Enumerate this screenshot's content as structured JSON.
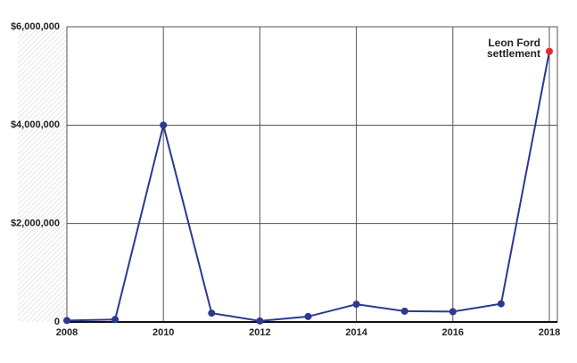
{
  "chart_data": {
    "type": "line",
    "x": [
      2008,
      2009,
      2010,
      2011,
      2012,
      2013,
      2014,
      2015,
      2016,
      2017,
      2018
    ],
    "series": [
      {
        "color": "#2b3990",
        "values": [
          30000,
          50000,
          4000000,
          180000,
          20000,
          110000,
          360000,
          220000,
          210000,
          370000,
          5500000
        ],
        "point_colors": [
          "#2b3990",
          "#2b3990",
          "#2b3990",
          "#2b3990",
          "#2b3990",
          "#2b3990",
          "#2b3990",
          "#2b3990",
          "#2b3990",
          "#2b3990",
          "#e8262b"
        ]
      }
    ],
    "annotation": [
      "Leon Ford",
      "settlement"
    ],
    "xlim": [
      2008,
      2018
    ],
    "xticks": [
      2008,
      2010,
      2012,
      2014,
      2016,
      2018
    ],
    "ylim": [
      0,
      6000000
    ],
    "yticks": [
      0,
      {
        "value": 2000000,
        "label": "$2,000,000"
      },
      {
        "value": 4000000,
        "label": "$4,000,000"
      },
      {
        "value": 6000000,
        "label": "$6,000,000"
      }
    ],
    "grid": true
  }
}
